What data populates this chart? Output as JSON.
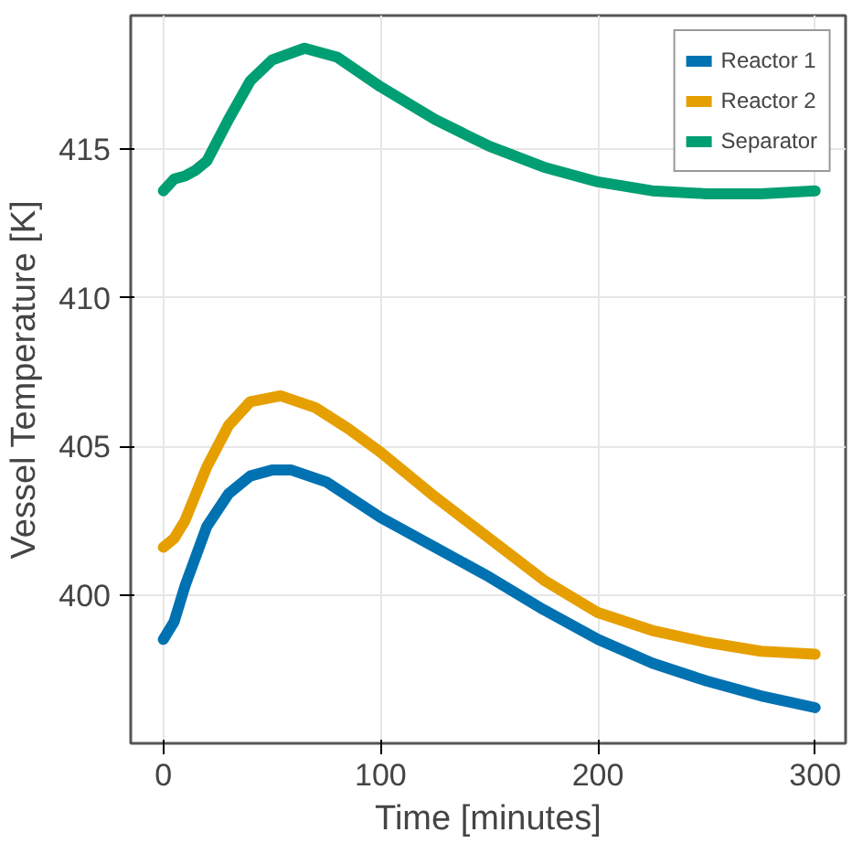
{
  "chart_data": {
    "type": "line",
    "xlabel": "Time [minutes]",
    "ylabel": "Vessel Temperature [K]",
    "xlim": [
      -15,
      314
    ],
    "ylim": [
      395.0,
      419.5
    ],
    "xticks": [
      0,
      100,
      200,
      300
    ],
    "yticks": [
      400,
      405,
      410,
      415
    ],
    "grid": true,
    "legend": "top right",
    "series": [
      {
        "name": "Reactor 1",
        "color": "#0072b2",
        "x": [
          0,
          5,
          10,
          20,
          30,
          40,
          50,
          59,
          75,
          100,
          125,
          150,
          175,
          200,
          225,
          250,
          275,
          300
        ],
        "values": [
          398.5,
          399.1,
          400.3,
          402.3,
          403.4,
          404.0,
          404.2,
          404.2,
          403.8,
          402.6,
          401.6,
          400.6,
          399.5,
          398.5,
          397.7,
          397.1,
          396.6,
          396.2
        ]
      },
      {
        "name": "Reactor 2",
        "color": "#e69f00",
        "x": [
          0,
          5,
          10,
          20,
          30,
          40,
          54,
          70,
          85,
          100,
          125,
          150,
          175,
          200,
          225,
          250,
          275,
          300
        ],
        "values": [
          401.6,
          401.9,
          402.5,
          404.3,
          405.7,
          406.5,
          406.7,
          406.3,
          405.6,
          404.8,
          403.3,
          401.9,
          400.5,
          399.4,
          398.8,
          398.4,
          398.1,
          398.0
        ]
      },
      {
        "name": "Separator",
        "color": "#009e73",
        "x": [
          0,
          5,
          10,
          15,
          20,
          30,
          40,
          50,
          65,
          80,
          100,
          125,
          150,
          175,
          200,
          225,
          250,
          275,
          300
        ],
        "values": [
          413.6,
          414.0,
          414.1,
          414.3,
          414.6,
          416.0,
          417.3,
          418.0,
          418.4,
          418.1,
          417.1,
          416.0,
          415.1,
          414.4,
          413.9,
          413.6,
          413.5,
          413.5,
          413.6
        ]
      }
    ]
  }
}
